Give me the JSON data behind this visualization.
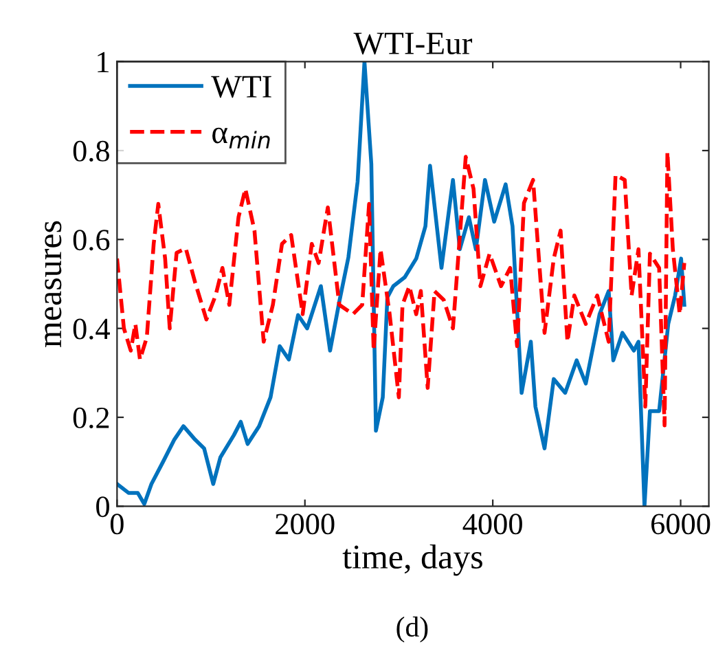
{
  "chart_data": {
    "type": "line",
    "title": "WTI-Eur",
    "xlabel": "time, days",
    "ylabel": "measures",
    "annotations": [
      "(d)"
    ],
    "xlim": [
      0,
      6300
    ],
    "ylim": [
      0,
      1
    ],
    "xticks": [
      0,
      2000,
      4000,
      6000
    ],
    "yticks": [
      0,
      0.2,
      0.4,
      0.6,
      0.8,
      1
    ],
    "grid": false,
    "legend": "top left",
    "series": [
      {
        "name": "WTI",
        "color": "#0072bd",
        "line_style": "solid",
        "x": [
          0,
          122,
          220,
          290,
          366,
          490,
          610,
          707,
          830,
          927,
          1024,
          1100,
          1244,
          1317,
          1390,
          1512,
          1634,
          1732,
          1829,
          1927,
          2024,
          2170,
          2268,
          2366,
          2463,
          2561,
          2634,
          2707,
          2756,
          2829,
          2878,
          2941,
          3063,
          3185,
          3283,
          3332,
          3454,
          3576,
          3649,
          3746,
          3820,
          3917,
          4015,
          4137,
          4210,
          4307,
          4405,
          4454,
          4551,
          4649,
          4771,
          4893,
          4990,
          5137,
          5234,
          5283,
          5380,
          5502,
          5551,
          5615,
          5673,
          5771,
          5868,
          5941,
          6005,
          6039
        ],
        "values": [
          0.05,
          0.03,
          0.03,
          0.005,
          0.05,
          0.1,
          0.15,
          0.18,
          0.15,
          0.13,
          0.05,
          0.11,
          0.16,
          0.19,
          0.14,
          0.18,
          0.245,
          0.36,
          0.33,
          0.43,
          0.4,
          0.495,
          0.35,
          0.46,
          0.56,
          0.73,
          1.0,
          0.77,
          0.17,
          0.245,
          0.47,
          0.495,
          0.515,
          0.557,
          0.63,
          0.766,
          0.536,
          0.734,
          0.578,
          0.65,
          0.578,
          0.734,
          0.64,
          0.724,
          0.63,
          0.255,
          0.37,
          0.224,
          0.13,
          0.286,
          0.255,
          0.328,
          0.276,
          0.432,
          0.484,
          0.328,
          0.39,
          0.35,
          0.37,
          0.0,
          0.214,
          0.214,
          0.41,
          0.474,
          0.557,
          0.453
        ]
      },
      {
        "name": "α$_{min}$",
        "color": "#ff0000",
        "line_style": "dashed",
        "x": [
          0,
          73,
          146,
          195,
          244,
          317,
          390,
          439,
          512,
          561,
          634,
          732,
          829,
          951,
          1049,
          1122,
          1195,
          1293,
          1366,
          1463,
          1561,
          1659,
          1756,
          1854,
          1976,
          2073,
          2146,
          2244,
          2366,
          2512,
          2610,
          2683,
          2732,
          2805,
          2902,
          3000,
          3039,
          3112,
          3185,
          3234,
          3307,
          3380,
          3478,
          3576,
          3624,
          3712,
          3795,
          3868,
          3966,
          4088,
          4185,
          4259,
          4332,
          4429,
          4502,
          4551,
          4649,
          4722,
          4795,
          4868,
          4990,
          5112,
          5234,
          5307,
          5405,
          5478,
          5551,
          5624,
          5673,
          5771,
          5829,
          5859,
          5917,
          5990,
          6039
        ],
        "values": [
          0.557,
          0.4,
          0.35,
          0.41,
          0.33,
          0.38,
          0.59,
          0.68,
          0.557,
          0.4,
          0.57,
          0.58,
          0.505,
          0.42,
          0.474,
          0.536,
          0.453,
          0.65,
          0.714,
          0.62,
          0.37,
          0.453,
          0.59,
          0.61,
          0.432,
          0.59,
          0.547,
          0.672,
          0.453,
          0.432,
          0.453,
          0.68,
          0.35,
          0.578,
          0.432,
          0.245,
          0.453,
          0.495,
          0.432,
          0.484,
          0.266,
          0.484,
          0.464,
          0.4,
          0.536,
          0.786,
          0.714,
          0.495,
          0.568,
          0.495,
          0.536,
          0.36,
          0.682,
          0.734,
          0.526,
          0.39,
          0.557,
          0.62,
          0.37,
          0.474,
          0.41,
          0.474,
          0.37,
          0.745,
          0.734,
          0.474,
          0.578,
          0.224,
          0.568,
          0.536,
          0.182,
          0.797,
          0.578,
          0.432,
          0.547
        ]
      }
    ]
  }
}
